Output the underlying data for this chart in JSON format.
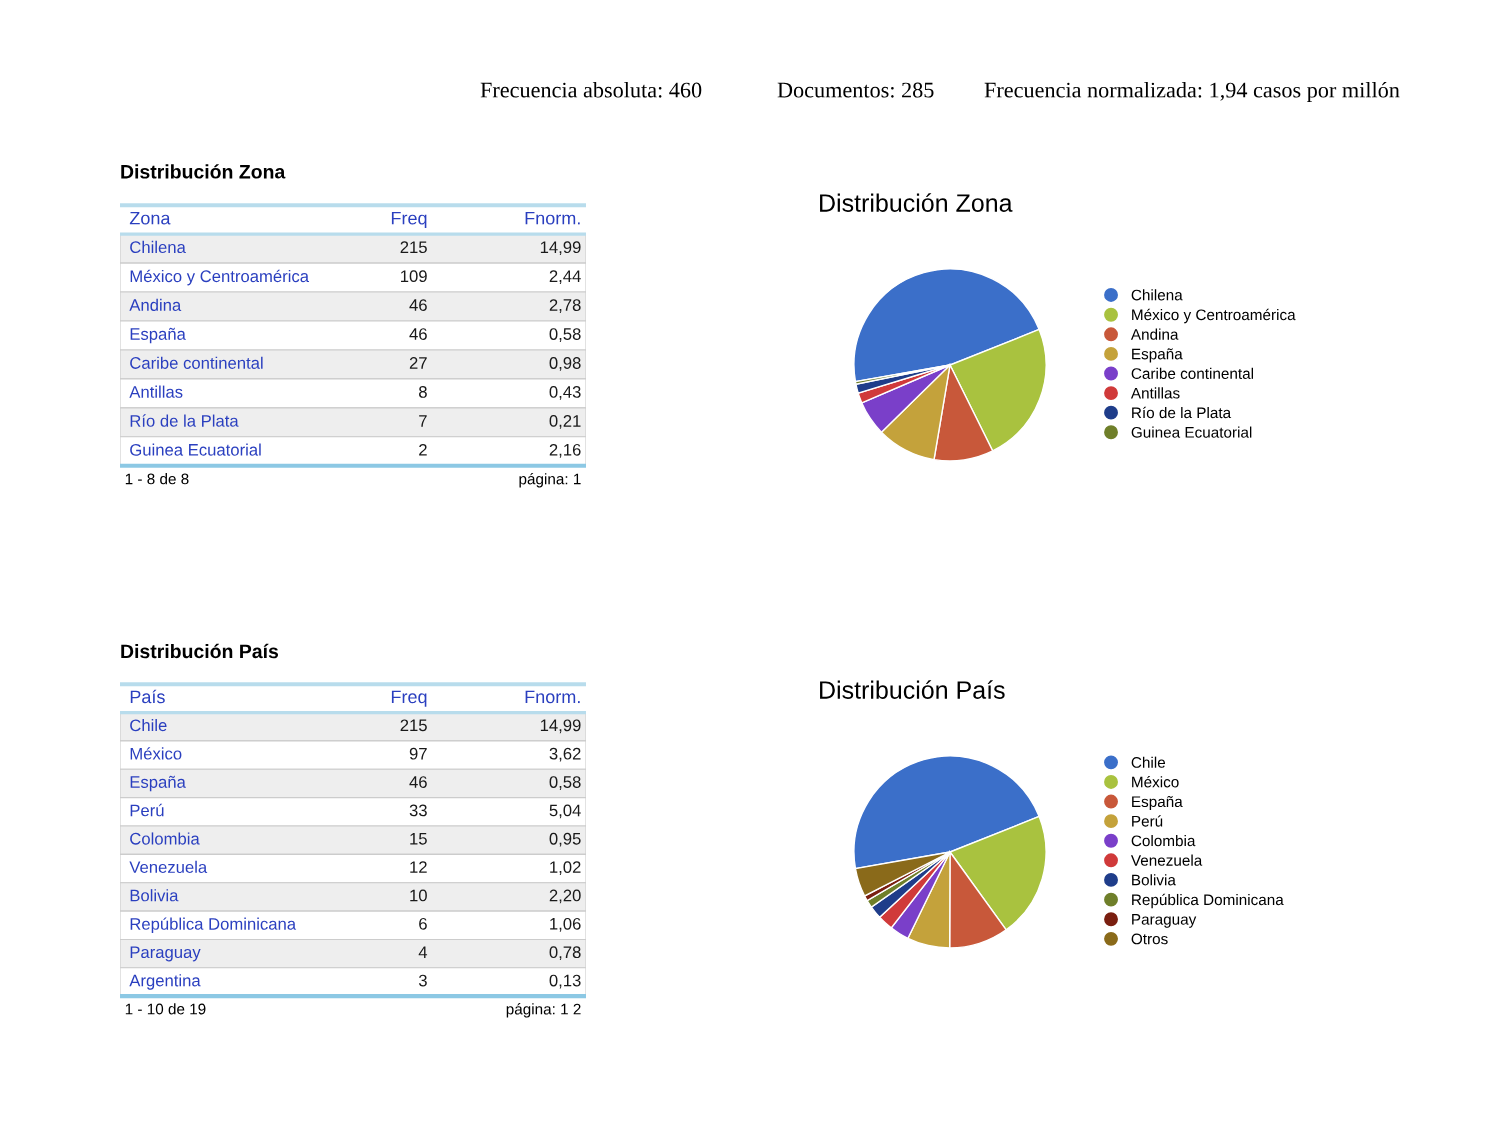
{
  "chart_data": [
    {
      "type": "other",
      "annotations": [
        "Frecuencia absoluta: 460",
        "Documentos: 285",
        "Frecuencia normalizada: 1,94 casos por millón"
      ]
    },
    {
      "type": "other",
      "title": "Distribución Zona",
      "annotations": [
        "Zona",
        "Freq",
        "Fnorm.",
        "Chilena",
        "215",
        "14,99",
        "México y Centroamérica",
        "109",
        "2,44",
        "Andina",
        "46",
        "2,78",
        "España",
        "46",
        "0,58",
        "Caribe continental",
        "27",
        "0,98",
        "Antillas",
        "8",
        "0,43",
        "Río de la Plata",
        "7",
        "0,21",
        "Guinea Ecuatorial",
        "2",
        "2,16",
        "1 - 8 de 8",
        "página: 1"
      ]
    },
    {
      "type": "pie",
      "title": "Distribución Zona",
      "categories": [
        "Chilena",
        "México y Centroamérica",
        "Andina",
        "España",
        "Caribe continental",
        "Antillas",
        "Río de la Plata",
        "Guinea Ecuatorial"
      ],
      "values": [
        46.74,
        23.7,
        10.0,
        10.0,
        5.87,
        1.74,
        1.52,
        0.43
      ],
      "colors": [
        "#3b6fc9",
        "#a9c23f",
        "#c8583a",
        "#c4a23b",
        "#7a3fc9",
        "#d03a3a",
        "#1f3d8a",
        "#6f7f2a"
      ],
      "legend": "right"
    },
    {
      "type": "other",
      "title": "Distribución País",
      "annotations": [
        "País",
        "Freq",
        "Fnorm.",
        "Chile",
        "215",
        "14,99",
        "México",
        "97",
        "3,62",
        "España",
        "46",
        "0,58",
        "Perú",
        "33",
        "5,04",
        "Colombia",
        "15",
        "0,95",
        "Venezuela",
        "12",
        "1,02",
        "Bolivia",
        "10",
        "2,20",
        "República Dominicana",
        "6",
        "1,06",
        "Paraguay",
        "4",
        "0,78",
        "Argentina",
        "3",
        "0,13",
        "1 - 10 de 19",
        "página: 1 2"
      ]
    },
    {
      "type": "pie",
      "title": "Distribución País",
      "categories": [
        "Chile",
        "México",
        "España",
        "Perú",
        "Colombia",
        "Venezuela",
        "Bolivia",
        "República Dominicana",
        "Paraguay",
        "Otros"
      ],
      "values": [
        46.74,
        21.09,
        10.0,
        7.17,
        3.26,
        2.61,
        2.17,
        1.3,
        0.87,
        4.79
      ],
      "colors": [
        "#3b6fc9",
        "#a9c23f",
        "#c8583a",
        "#c4a23b",
        "#7a3fc9",
        "#d03a3a",
        "#1f3d8a",
        "#6f7f2a",
        "#7a1f10",
        "#8a6a1a"
      ],
      "legend": "right"
    }
  ]
}
